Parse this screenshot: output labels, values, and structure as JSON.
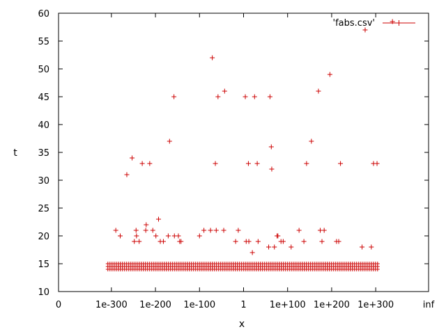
{
  "chart_data": {
    "type": "scatter",
    "xlabel": "x",
    "ylabel": "t",
    "ylim": [
      10,
      60
    ],
    "y_ticks": [
      10,
      15,
      20,
      25,
      30,
      35,
      40,
      45,
      50,
      55,
      60
    ],
    "x_scale": "log10",
    "x_exponent_range": [
      -420,
      420
    ],
    "x_ticks": [
      {
        "label": "0"
      },
      {
        "exp": -300,
        "label": "1e-300"
      },
      {
        "exp": -200,
        "label": "1e-200"
      },
      {
        "exp": -100,
        "label": "1e-100"
      },
      {
        "exp": 0,
        "label": "1"
      },
      {
        "exp": 100,
        "label": "1e+100"
      },
      {
        "exp": 200,
        "label": "1e+200"
      },
      {
        "exp": 300,
        "label": "1e+300"
      },
      {
        "label": "inf"
      }
    ],
    "legend": {
      "entries": [
        "'fabs.csv'"
      ],
      "position": "top-right"
    },
    "series_color": "#cc0000",
    "series": [
      {
        "name": "'fabs.csv'",
        "marker": "plus",
        "dense_band": {
          "x_exp_range": [
            -308,
            308
          ],
          "y_values": [
            14,
            14.5,
            15
          ]
        },
        "points": [
          {
            "x_exp": -290,
            "y": 21
          },
          {
            "x_exp": -280,
            "y": 20
          },
          {
            "x_exp": -265,
            "y": 31
          },
          {
            "x_exp": -253,
            "y": 34
          },
          {
            "x_exp": -248,
            "y": 19
          },
          {
            "x_exp": -244,
            "y": 21
          },
          {
            "x_exp": -243,
            "y": 20
          },
          {
            "x_exp": -237,
            "y": 19
          },
          {
            "x_exp": -230,
            "y": 33
          },
          {
            "x_exp": -222,
            "y": 21
          },
          {
            "x_exp": -221,
            "y": 22
          },
          {
            "x_exp": -213,
            "y": 33
          },
          {
            "x_exp": -206,
            "y": 21
          },
          {
            "x_exp": -199,
            "y": 20
          },
          {
            "x_exp": -193,
            "y": 23
          },
          {
            "x_exp": -189,
            "y": 19
          },
          {
            "x_exp": -182,
            "y": 19
          },
          {
            "x_exp": -171,
            "y": 20
          },
          {
            "x_exp": -168,
            "y": 37
          },
          {
            "x_exp": -158,
            "y": 45
          },
          {
            "x_exp": -157,
            "y": 20
          },
          {
            "x_exp": -148,
            "y": 20
          },
          {
            "x_exp": -145,
            "y": 19
          },
          {
            "x_exp": -142,
            "y": 19
          },
          {
            "x_exp": -100,
            "y": 20
          },
          {
            "x_exp": -90,
            "y": 21
          },
          {
            "x_exp": -75,
            "y": 21
          },
          {
            "x_exp": -71,
            "y": 52
          },
          {
            "x_exp": -64,
            "y": 33
          },
          {
            "x_exp": -62,
            "y": 21
          },
          {
            "x_exp": -58,
            "y": 45
          },
          {
            "x_exp": -45,
            "y": 21
          },
          {
            "x_exp": -43,
            "y": 46
          },
          {
            "x_exp": -18,
            "y": 19
          },
          {
            "x_exp": -12,
            "y": 21
          },
          {
            "x_exp": 4,
            "y": 45
          },
          {
            "x_exp": 6,
            "y": 19
          },
          {
            "x_exp": 11,
            "y": 33
          },
          {
            "x_exp": 12,
            "y": 19
          },
          {
            "x_exp": 20,
            "y": 17
          },
          {
            "x_exp": 25,
            "y": 45
          },
          {
            "x_exp": 31,
            "y": 33
          },
          {
            "x_exp": 33,
            "y": 19
          },
          {
            "x_exp": 57,
            "y": 18
          },
          {
            "x_exp": 60,
            "y": 45
          },
          {
            "x_exp": 63,
            "y": 36
          },
          {
            "x_exp": 64,
            "y": 32
          },
          {
            "x_exp": 70,
            "y": 18
          },
          {
            "x_exp": 76,
            "y": 20
          },
          {
            "x_exp": 78,
            "y": 20
          },
          {
            "x_exp": 85,
            "y": 19
          },
          {
            "x_exp": 90,
            "y": 19
          },
          {
            "x_exp": 108,
            "y": 18
          },
          {
            "x_exp": 126,
            "y": 21
          },
          {
            "x_exp": 137,
            "y": 19
          },
          {
            "x_exp": 143,
            "y": 33
          },
          {
            "x_exp": 154,
            "y": 37
          },
          {
            "x_exp": 170,
            "y": 46
          },
          {
            "x_exp": 174,
            "y": 21
          },
          {
            "x_exp": 178,
            "y": 19
          },
          {
            "x_exp": 183,
            "y": 21
          },
          {
            "x_exp": 196,
            "y": 49
          },
          {
            "x_exp": 211,
            "y": 19
          },
          {
            "x_exp": 216,
            "y": 19
          },
          {
            "x_exp": 220,
            "y": 33
          },
          {
            "x_exp": 269,
            "y": 18
          },
          {
            "x_exp": 276,
            "y": 57
          },
          {
            "x_exp": 290,
            "y": 18
          },
          {
            "x_exp": 295,
            "y": 33
          },
          {
            "x_exp": 303,
            "y": 33
          },
          {
            "x_exp": 338,
            "y": 58.5
          }
        ]
      }
    ]
  }
}
